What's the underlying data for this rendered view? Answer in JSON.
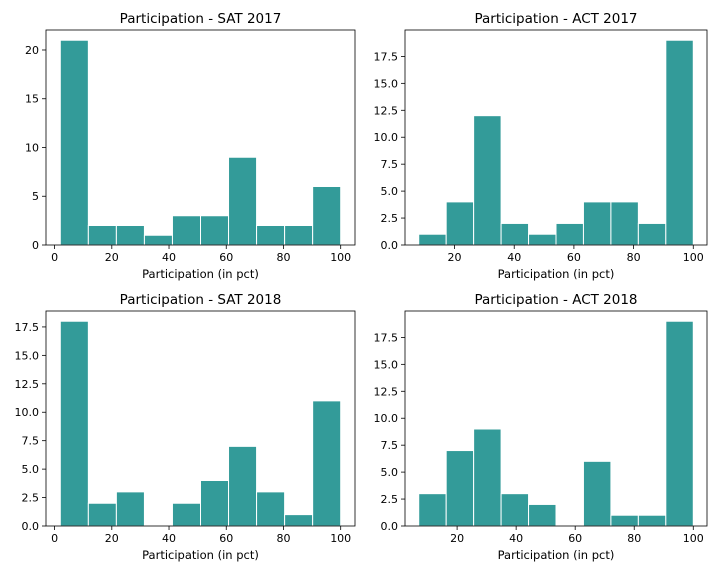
{
  "figure": {
    "bar_color": "#339b99",
    "edge_color": "#ffffff"
  },
  "chart_data": [
    {
      "type": "bar",
      "title": "Participation - SAT 2017",
      "xlabel": "Participation (in pct)",
      "ylabel": "",
      "bin_edges": [
        2,
        11.8,
        21.6,
        31.4,
        41.2,
        51,
        60.8,
        70.6,
        80.4,
        90.2,
        100
      ],
      "values": [
        21,
        2,
        2,
        1,
        3,
        3,
        9,
        2,
        2,
        6
      ],
      "xlim": [
        -3,
        105
      ],
      "ylim": [
        0,
        22.05
      ],
      "xticks": [
        0,
        20,
        40,
        60,
        80,
        100
      ],
      "yticks": [
        0,
        5,
        10,
        15,
        20
      ],
      "xtick_labels": [
        "0",
        "20",
        "40",
        "60",
        "80",
        "100"
      ],
      "ytick_labels": [
        "0",
        "5",
        "10",
        "15",
        "20"
      ]
    },
    {
      "type": "bar",
      "title": "Participation - ACT 2017",
      "xlabel": "Participation (in pct)",
      "ylabel": "",
      "bin_edges": [
        8,
        17.2,
        26.4,
        35.6,
        44.8,
        54,
        63.2,
        72.4,
        81.6,
        90.8,
        100
      ],
      "values": [
        1,
        4,
        12,
        2,
        1,
        2,
        4,
        4,
        2,
        19
      ],
      "xlim": [
        3.4,
        104.6
      ],
      "ylim": [
        0,
        19.95
      ],
      "xticks": [
        20,
        40,
        60,
        80,
        100
      ],
      "yticks": [
        0,
        2.5,
        5,
        7.5,
        10,
        12.5,
        15,
        17.5
      ],
      "xtick_labels": [
        "20",
        "40",
        "60",
        "80",
        "100"
      ],
      "ytick_labels": [
        "0.0",
        "2.5",
        "5.0",
        "7.5",
        "10.0",
        "12.5",
        "15.0",
        "17.5"
      ]
    },
    {
      "type": "bar",
      "title": "Participation - SAT 2018",
      "xlabel": "Participation (in pct)",
      "ylabel": "",
      "bin_edges": [
        2,
        11.8,
        21.6,
        31.4,
        41.2,
        51,
        60.8,
        70.6,
        80.4,
        90.2,
        100
      ],
      "values": [
        18,
        2,
        3,
        0,
        2,
        4,
        7,
        3,
        1,
        11
      ],
      "xlim": [
        -3,
        105
      ],
      "ylim": [
        0,
        18.9
      ],
      "xticks": [
        0,
        20,
        40,
        60,
        80,
        100
      ],
      "yticks": [
        0,
        2.5,
        5,
        7.5,
        10,
        12.5,
        15,
        17.5
      ],
      "xtick_labels": [
        "0",
        "20",
        "40",
        "60",
        "80",
        "100"
      ],
      "ytick_labels": [
        "0.0",
        "2.5",
        "5.0",
        "7.5",
        "10.0",
        "12.5",
        "15.0",
        "17.5"
      ]
    },
    {
      "type": "bar",
      "title": "Participation - ACT 2018",
      "xlabel": "Participation (in pct)",
      "ylabel": "",
      "bin_edges": [
        7,
        16.3,
        25.6,
        34.9,
        44.2,
        53.5,
        62.8,
        72.1,
        81.4,
        90.7,
        100
      ],
      "values": [
        3,
        7,
        9,
        3,
        2,
        0,
        6,
        1,
        1,
        19
      ],
      "xlim": [
        2.35,
        104.65
      ],
      "ylim": [
        0,
        19.95
      ],
      "xticks": [
        20,
        40,
        60,
        80,
        100
      ],
      "yticks": [
        0,
        2.5,
        5,
        7.5,
        10,
        12.5,
        15,
        17.5
      ],
      "xtick_labels": [
        "20",
        "40",
        "60",
        "80",
        "100"
      ],
      "ytick_labels": [
        "0.0",
        "2.5",
        "5.0",
        "7.5",
        "10.0",
        "12.5",
        "15.0",
        "17.5"
      ]
    }
  ]
}
